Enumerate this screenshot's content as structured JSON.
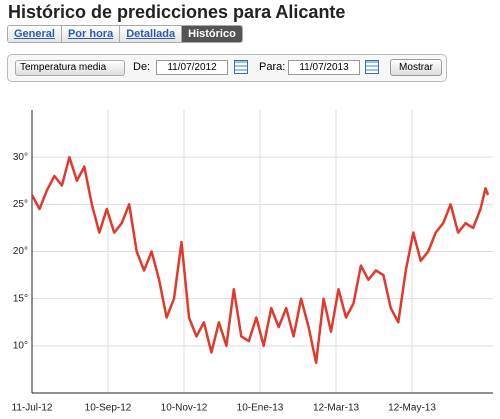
{
  "header": {
    "title": "Histórico de predicciones para Alicante"
  },
  "tabs": {
    "items": [
      "General",
      "Por hora",
      "Detallada",
      "Histórico"
    ],
    "active": 3
  },
  "controls": {
    "variable": "Temperatura media",
    "from_label": "De:",
    "from_value": "11/07/2012",
    "to_label": "Para:",
    "to_value": "11/07/2013",
    "button": "Mostrar"
  },
  "chart_data": {
    "type": "line",
    "color": "#e0392d",
    "grid": true,
    "x": [
      "2012-07-11",
      "2012-07-17",
      "2012-07-23",
      "2012-07-29",
      "2012-08-04",
      "2012-08-10",
      "2012-08-16",
      "2012-08-22",
      "2012-08-28",
      "2012-09-03",
      "2012-09-09",
      "2012-09-15",
      "2012-09-21",
      "2012-09-27",
      "2012-10-03",
      "2012-10-09",
      "2012-10-15",
      "2012-10-21",
      "2012-10-27",
      "2012-11-02",
      "2012-11-08",
      "2012-11-14",
      "2012-11-20",
      "2012-11-26",
      "2012-12-02",
      "2012-12-08",
      "2012-12-14",
      "2012-12-20",
      "2012-12-26",
      "2013-01-01",
      "2013-01-07",
      "2013-01-13",
      "2013-01-19",
      "2013-01-25",
      "2013-01-31",
      "2013-02-06",
      "2013-02-12",
      "2013-02-18",
      "2013-02-24",
      "2013-03-02",
      "2013-03-08",
      "2013-03-14",
      "2013-03-20",
      "2013-03-26",
      "2013-04-01",
      "2013-04-07",
      "2013-04-13",
      "2013-04-19",
      "2013-04-25",
      "2013-05-01",
      "2013-05-07",
      "2013-05-13",
      "2013-05-19",
      "2013-05-25",
      "2013-05-31",
      "2013-06-06",
      "2013-06-12",
      "2013-06-18",
      "2013-06-24",
      "2013-06-30",
      "2013-07-06",
      "2013-07-10",
      "2013-07-12"
    ],
    "values": [
      26,
      24.5,
      26.5,
      28,
      27,
      30,
      27.5,
      29,
      25,
      22,
      24.5,
      22,
      23,
      25,
      20,
      18,
      20,
      17,
      13,
      15,
      21,
      13,
      11,
      12.5,
      9.3,
      12.5,
      10,
      16,
      11,
      10.5,
      13,
      10,
      14,
      12,
      14,
      11,
      15,
      12,
      8.2,
      15,
      11.5,
      16,
      13,
      14.5,
      18.5,
      17,
      18,
      17.5,
      14,
      12.5,
      18,
      22,
      19,
      20,
      22,
      23,
      25,
      22,
      23,
      22.5,
      24.5,
      26.7,
      26
    ],
    "xlim": [
      "2012-07-11",
      "2013-07-16"
    ],
    "xticks": [
      {
        "value": "2012-07-11",
        "label": "11-Jul-12"
      },
      {
        "value": "2012-09-10",
        "label": "10-Sep-12"
      },
      {
        "value": "2012-11-10",
        "label": "10-Nov-12"
      },
      {
        "value": "2013-01-10",
        "label": "10-Ene-13"
      },
      {
        "value": "2013-03-12",
        "label": "12-Mar-13"
      },
      {
        "value": "2013-05-12",
        "label": "12-May-13"
      }
    ],
    "ylim": [
      5,
      35
    ],
    "yticks": [
      {
        "value": 10,
        "label": "10°"
      },
      {
        "value": 15,
        "label": "15°"
      },
      {
        "value": 20,
        "label": "20°"
      },
      {
        "value": 25,
        "label": "25°"
      },
      {
        "value": 30,
        "label": "30°"
      }
    ]
  }
}
